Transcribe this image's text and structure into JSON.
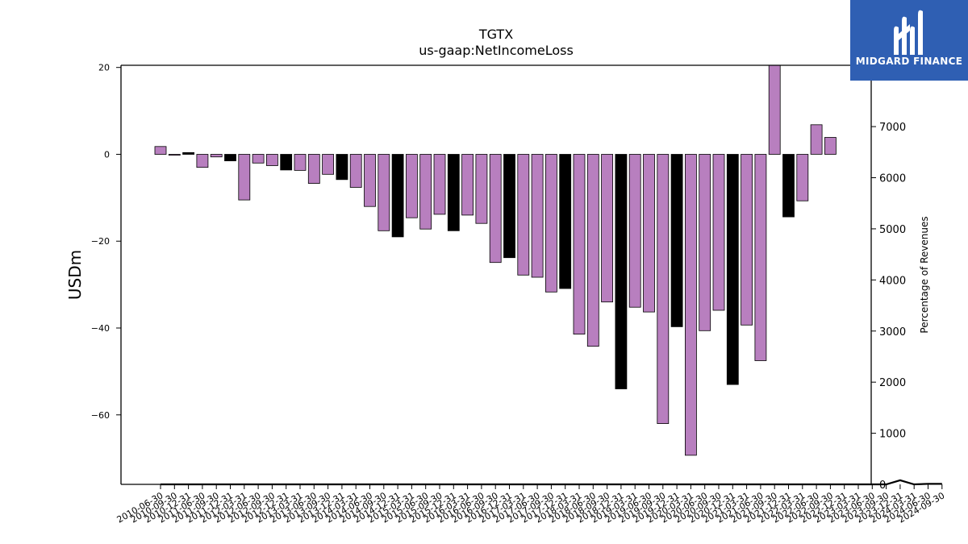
{
  "brand": {
    "name": "MIDGARD FINANCE",
    "logo_icon": "midgard-m-logo-icon",
    "bg_color": "#2f5fb3"
  },
  "chart_data": {
    "type": "bar",
    "title": "TGTX",
    "subtitle": "us-gaap:NetIncomeLoss",
    "ylabel": "USDm",
    "y2label": "Percentage of Revenues",
    "ylim": [
      -76,
      20.5
    ],
    "y2lim": [
      0,
      8200
    ],
    "yticks": [
      20,
      0,
      -20,
      -40,
      -60
    ],
    "y2ticks": [
      0,
      1000,
      2000,
      3000,
      4000,
      5000,
      6000,
      7000
    ],
    "colors": {
      "quarter": "#b87fbf",
      "annual": "#000000"
    },
    "categories": [
      "2010-06-30",
      "2010-09-30",
      "2010-12-31",
      "2011-06-30",
      "2011-09-30",
      "2011-12-31",
      "2012-03-31",
      "2012-06-30",
      "2012-09-30",
      "2012-12-31",
      "2013-03-31",
      "2013-06-30",
      "2013-09-30",
      "2013-12-31",
      "2014-03-31",
      "2014-06-30",
      "2014-09-30",
      "2014-12-31",
      "2015-03-31",
      "2015-06-30",
      "2015-09-30",
      "2015-12-31",
      "2016-03-31",
      "2016-06-30",
      "2016-09-30",
      "2016-12-31",
      "2017-03-31",
      "2017-06-30",
      "2017-09-30",
      "2017-12-31",
      "2018-03-31",
      "2018-06-30",
      "2018-09-30",
      "2018-12-31",
      "2019-03-31",
      "2019-06-30",
      "2019-09-30",
      "2019-12-31",
      "2020-03-31",
      "2020-06-30",
      "2020-09-30",
      "2020-12-31",
      "2021-03-31",
      "2021-06-30",
      "2021-09-30",
      "2021-12-31",
      "2022-03-31",
      "2022-06-30",
      "2022-09-30",
      "2022-12-31",
      "2023-03-31",
      "2023-06-30",
      "2023-09-30",
      "2023-12-31",
      "2024-03-31",
      "2024-06-30",
      "2024-09-30"
    ],
    "tick_labels": [
      "2010-06-30",
      "2010-09-30",
      "2010-12-31",
      "2011-06-30",
      "2011-09-30",
      "2011-12-31",
      "2012-03-31",
      "2012-06-30",
      "2012-09-30",
      "2012-12-31",
      "2013-03-31",
      "2013-06-30",
      "2013-09-30",
      "2013-12-31",
      "2014-03-31",
      "2014-06-30",
      "2014-09-30",
      "2014-12-31",
      "2015-03-31",
      "2015-06-30",
      "2015-09-30",
      "2015-12-31",
      "2016-03-31",
      "2016-06-30",
      "2016-09-30",
      "2016-12-31",
      "2017-03-31",
      "2017-06-30",
      "2017-09-30",
      "2017-12-31",
      "2018-03-31",
      "2018-06-30",
      "2018-09-30",
      "2018-12-31",
      "2019-03-31",
      "2019-06-30",
      "2019-09-30",
      "2019-12-31",
      "2020-03-31",
      "2020-06-30",
      "2020-09-30",
      "2020-12-31",
      "2021-03-31",
      "2021-06-30",
      "2021-09-30",
      "2021-12-31",
      "2022-03-31",
      "2022-06-30",
      "2022-09-30",
      "2022-12-31",
      "2023-03-31",
      "2023-06-30",
      "2023-09-30",
      "2023-12-31",
      "2024-03-31",
      "2024-06-30",
      "2024-09-30"
    ],
    "bars": [
      {
        "x": "2010-06-30",
        "value": 1.8,
        "period": "quarter"
      },
      {
        "x": "2010-09-30",
        "value": -0.2,
        "period": "quarter"
      },
      {
        "x": "2010-12-31",
        "value": 0.4,
        "period": "annual"
      },
      {
        "x": "2011-06-30",
        "value": -3.0,
        "period": "quarter"
      },
      {
        "x": "2011-09-30",
        "value": -0.6,
        "period": "quarter"
      },
      {
        "x": "2011-12-31",
        "value": -1.5,
        "period": "annual"
      },
      {
        "x": "2012-03-31",
        "value": -10.5,
        "period": "quarter"
      },
      {
        "x": "2012-06-30",
        "value": -2.0,
        "period": "quarter"
      },
      {
        "x": "2012-09-30",
        "value": -2.6,
        "period": "quarter"
      },
      {
        "x": "2012-12-31",
        "value": -3.6,
        "period": "annual"
      },
      {
        "x": "2013-03-31",
        "value": -3.7,
        "period": "quarter"
      },
      {
        "x": "2013-06-30",
        "value": -6.7,
        "period": "quarter"
      },
      {
        "x": "2013-09-30",
        "value": -4.6,
        "period": "quarter"
      },
      {
        "x": "2013-12-31",
        "value": -5.8,
        "period": "annual"
      },
      {
        "x": "2014-03-31",
        "value": -7.6,
        "period": "quarter"
      },
      {
        "x": "2014-06-30",
        "value": -12.0,
        "period": "quarter"
      },
      {
        "x": "2014-09-30",
        "value": -17.6,
        "period": "quarter"
      },
      {
        "x": "2014-12-31",
        "value": -19.0,
        "period": "annual"
      },
      {
        "x": "2015-03-31",
        "value": -14.6,
        "period": "quarter"
      },
      {
        "x": "2015-06-30",
        "value": -17.2,
        "period": "quarter"
      },
      {
        "x": "2015-09-30",
        "value": -13.8,
        "period": "quarter"
      },
      {
        "x": "2015-12-31",
        "value": -17.6,
        "period": "annual"
      },
      {
        "x": "2016-03-31",
        "value": -14.0,
        "period": "quarter"
      },
      {
        "x": "2016-06-30",
        "value": -15.9,
        "period": "quarter"
      },
      {
        "x": "2016-09-30",
        "value": -24.9,
        "period": "quarter"
      },
      {
        "x": "2016-12-31",
        "value": -23.8,
        "period": "annual"
      },
      {
        "x": "2017-03-31",
        "value": -27.8,
        "period": "quarter"
      },
      {
        "x": "2017-06-30",
        "value": -28.3,
        "period": "quarter"
      },
      {
        "x": "2017-09-30",
        "value": -31.7,
        "period": "quarter"
      },
      {
        "x": "2017-12-31",
        "value": -30.9,
        "period": "annual"
      },
      {
        "x": "2018-03-31",
        "value": -41.4,
        "period": "quarter"
      },
      {
        "x": "2018-06-30",
        "value": -44.2,
        "period": "quarter"
      },
      {
        "x": "2018-09-30",
        "value": -34.0,
        "period": "quarter"
      },
      {
        "x": "2018-12-31",
        "value": -54.0,
        "period": "annual"
      },
      {
        "x": "2019-03-31",
        "value": -35.2,
        "period": "quarter"
      },
      {
        "x": "2019-06-30",
        "value": -36.3,
        "period": "quarter"
      },
      {
        "x": "2019-09-30",
        "value": -62.0,
        "period": "quarter"
      },
      {
        "x": "2019-12-31",
        "value": -39.7,
        "period": "annual"
      },
      {
        "x": "2020-03-31",
        "value": -69.3,
        "period": "quarter"
      },
      {
        "x": "2020-06-30",
        "value": -40.6,
        "period": "quarter"
      },
      {
        "x": "2020-09-30",
        "value": -35.9,
        "period": "quarter"
      },
      {
        "x": "2020-12-31",
        "value": -53.0,
        "period": "annual"
      },
      {
        "x": "2021-03-31",
        "value": -39.3,
        "period": "quarter"
      },
      {
        "x": "2021-06-30",
        "value": -47.5,
        "period": "quarter"
      },
      {
        "x": "2021-09-30",
        "value": 21.0,
        "period": "quarter"
      },
      {
        "x": "2021-12-31",
        "value": -14.4,
        "period": "annual"
      },
      {
        "x": "2022-03-31",
        "value": -10.7,
        "period": "quarter"
      },
      {
        "x": "2022-06-30",
        "value": 6.8,
        "period": "quarter"
      },
      {
        "x": "2022-09-30",
        "value": 3.9,
        "period": "quarter"
      }
    ],
    "secondary_line": {
      "x_start": "2010-06-30",
      "x_end": "2024-09-30",
      "values_at_tail": [
        {
          "x": "2023-09-30",
          "value": 0
        },
        {
          "x": "2023-12-31",
          "value": 80
        },
        {
          "x": "2024-03-31",
          "value": 0
        },
        {
          "x": "2024-06-30",
          "value": 10
        },
        {
          "x": "2024-09-30",
          "value": 10
        }
      ]
    }
  }
}
